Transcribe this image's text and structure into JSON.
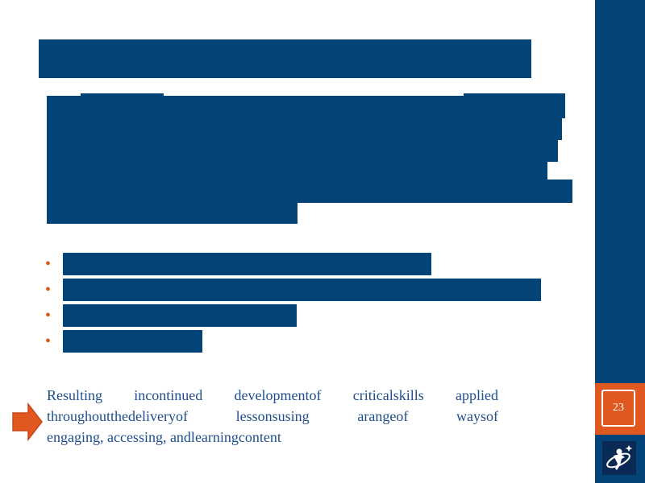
{
  "slide": {
    "page_number": "23",
    "result_lines": [
      "Resulting incontinued developmentof criticalskills applied",
      "throughoutthedeliveryof lessonsusing arangeof waysof",
      "engaging, accessing, andlearningcontent"
    ]
  },
  "colors": {
    "redaction": "#024478",
    "accent": "#e0581f",
    "text": "#1f4e8c"
  },
  "icons": {
    "arrow": "right-arrow-icon",
    "bullet": "bullet-icon",
    "logo": "logo-icon"
  }
}
